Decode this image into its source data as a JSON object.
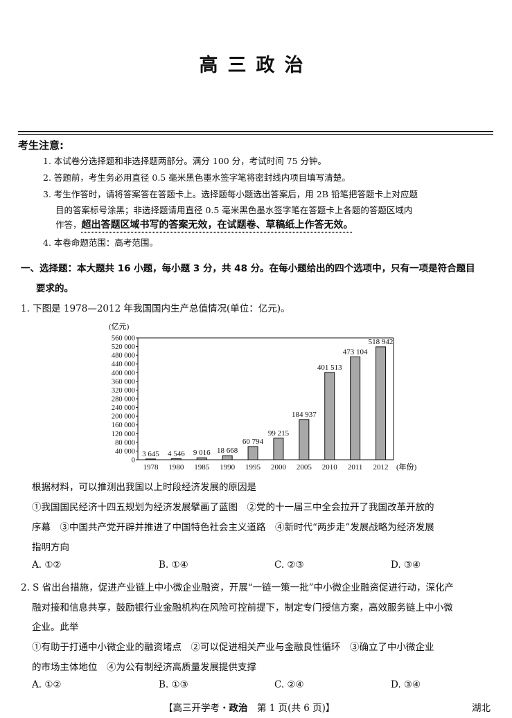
{
  "title": "高三政治",
  "notice": {
    "heading": "考生注意:",
    "items": [
      "1. 本试卷分选择题和非选择题两部分。满分 100 分，考试时间 75 分钟。",
      "2. 答题前，考生务必用直径 0.5 毫米黑色墨水签字笔将密封线内项目填写清楚。",
      "3. 考生作答时，请将答案答在答题卡上。选择题每小题选出答案后，用 2B 铅笔把答题卡上对应题",
      "目的答案标号涂黑；非选择题请用直径 0.5 毫米黑色墨水签字笔在答题卡上各题的答题区域内",
      "作答，",
      "超出答题区域书写的答案无效，在试题卷、草稿纸上作答无效。",
      "4. 本卷命题范围：高考范围。"
    ]
  },
  "section": {
    "line1": "一、选择题：本大题共 16 小题，每小题 3 分，共 48 分。在每小题给出的四个选项中，只有一项是符合题目",
    "line2": "要求的。"
  },
  "q1": {
    "stem": "1. 下图是 1978—2012 年我国国内生产总值情况(单位：亿元)。",
    "prompt": "根据材料，可以推测出我国以上时段经济发展的原因是",
    "lines": [
      "①我国国民经济十四五规划为经济发展擘画了蓝图　②党的十一届三中全会拉开了我国改革开放的",
      "序幕　③中国共产党开辟并推进了中国特色社会主义道路　④新时代“两步走”发展战略为经济发展",
      "指明方向"
    ],
    "options": [
      "A. ①②",
      "B. ①④",
      "C. ②③",
      "D. ③④"
    ]
  },
  "q2": {
    "lines": [
      "2. S 省出台措施，促进产业链上中小微企业融资，开展“一链一策一批”中小微企业融资促进行动，深化产",
      "融对接和信息共享，鼓励银行业金融机构在风险可控前提下，制定专门授信方案，高效服务链上中小微",
      "企业。此举",
      "①有助于打通中小微企业的融资堵点　②可以促进相关产业与金融良性循环　③确立了中小微企业",
      "的市场主体地位　④为公有制经济高质量发展提供支撑"
    ],
    "options": [
      "A. ①②",
      "B. ①③",
      "C. ②④",
      "D. ③④"
    ]
  },
  "footer": {
    "left": "【高三开学考・",
    "subject": "政治",
    "right": "　第 1 页(共 6 页)】",
    "region": "湖北"
  },
  "chart_data": {
    "type": "bar",
    "categories": [
      "1978",
      "1980",
      "1985",
      "1990",
      "1995",
      "2000",
      "2005",
      "2010",
      "2011",
      "2012"
    ],
    "values": [
      3645,
      4546,
      9016,
      18668,
      60794,
      99215,
      184937,
      401513,
      473104,
      518942
    ],
    "data_labels": [
      "3 645",
      "4 546",
      "9 016",
      "18 668",
      "60 794",
      "99 215",
      "184 937",
      "401 513",
      "473 104",
      "518 942"
    ],
    "ylabel": "(亿元)",
    "xlabel": "(年份)",
    "ylim": [
      0,
      560000
    ],
    "yticks": [
      "0",
      "40 000",
      "80 000",
      "120 000",
      "160 000",
      "200 000",
      "240 000",
      "280 000",
      "320 000",
      "360 000",
      "400 000",
      "440 000",
      "480 000",
      "520 000",
      "560 000"
    ],
    "bar_color": "#a8a8a8",
    "grid": false
  }
}
